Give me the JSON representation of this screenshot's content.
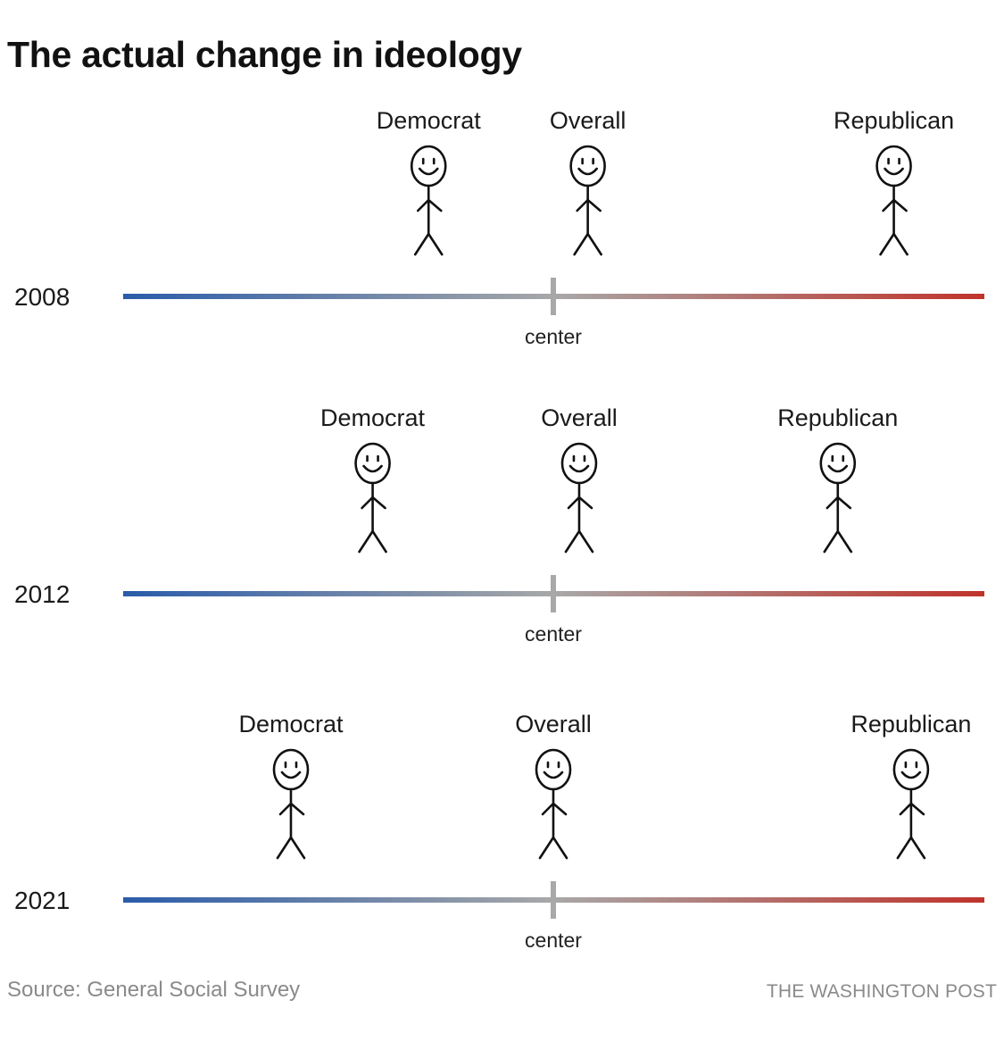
{
  "chart_data": {
    "type": "scatter",
    "title": "The actual change in ideology",
    "axis": {
      "center_label": "center",
      "left_color": "#2a5caa",
      "center_color": "#a8a8a8",
      "right_color": "#c0332b"
    },
    "rows": [
      {
        "year": "2008",
        "points": [
          {
            "name": "Democrat",
            "x": -0.29
          },
          {
            "name": "Overall",
            "x": 0.08
          },
          {
            "name": "Republican",
            "x": 0.79
          }
        ]
      },
      {
        "year": "2012",
        "points": [
          {
            "name": "Democrat",
            "x": -0.42
          },
          {
            "name": "Overall",
            "x": 0.06
          },
          {
            "name": "Republican",
            "x": 0.66
          }
        ]
      },
      {
        "year": "2021",
        "points": [
          {
            "name": "Democrat",
            "x": -0.61
          },
          {
            "name": "Overall",
            "x": 0.0
          },
          {
            "name": "Republican",
            "x": 0.83
          }
        ]
      }
    ],
    "xlim": [
      -1,
      1
    ]
  },
  "footer": {
    "source": "Source: General Social Survey",
    "credit": "THE WASHINGTON POST"
  }
}
